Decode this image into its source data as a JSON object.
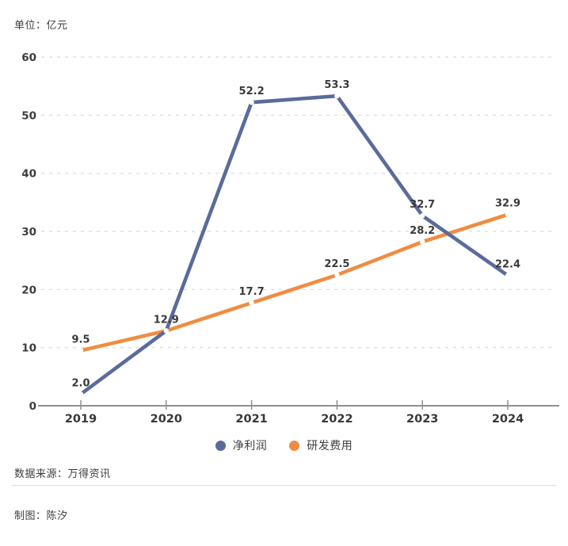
{
  "header": {
    "unit_label": "单位：亿元"
  },
  "chart_data": {
    "type": "line",
    "categories": [
      "2019",
      "2020",
      "2021",
      "2022",
      "2023",
      "2024"
    ],
    "series": [
      {
        "name": "净利润",
        "color": "#5a6b9b",
        "values": [
          2.0,
          12.9,
          52.2,
          53.3,
          32.7,
          22.4
        ],
        "point_labels": [
          "2.0",
          "",
          "52.2",
          "53.3",
          "32.7",
          "22.4"
        ]
      },
      {
        "name": "研发费用",
        "color": "#f08c41",
        "values": [
          9.5,
          12.9,
          17.7,
          22.5,
          28.2,
          32.9
        ],
        "point_labels": [
          "9.5",
          "12.9",
          "17.7",
          "22.5",
          "28.2",
          "32.9"
        ]
      }
    ],
    "yticks": [
      0,
      10,
      20,
      30,
      40,
      50,
      60
    ],
    "ylim": [
      0,
      60
    ],
    "xlabel": "",
    "ylabel": "单位：亿元",
    "grid": "horizontal-dashed",
    "legend_position": "bottom-center",
    "marker": "small-white-dot"
  },
  "footer": {
    "source": "数据来源：万得资讯",
    "credit": "制图：陈汐"
  },
  "colors": {
    "net_profit_line": "#5a6b9b",
    "rnd_line": "#f08c41",
    "gridline": "#d9d9d9",
    "axis_line": "#8f8f8f",
    "label_text": "#3a3a3a"
  }
}
